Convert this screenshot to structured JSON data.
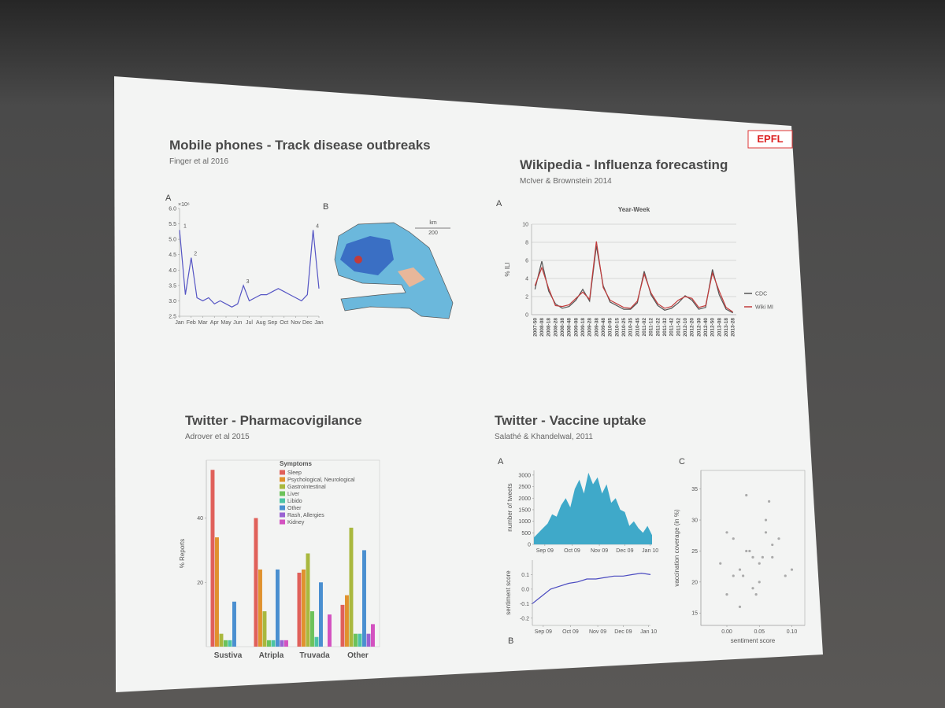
{
  "slide": {
    "logo": "EPFL",
    "panels": [
      {
        "title": "Mobile phones - Track disease outbreaks",
        "citation": "Finger et al 2016",
        "charts": [
          {
            "type": "line",
            "label": "A",
            "multiplier": "×10⁶",
            "color": "#5555c4",
            "xlim": [
              0,
              12
            ],
            "ylim": [
              2.5,
              6.0
            ],
            "yticks": [
              {
                "value": 2.5,
                "label": "2.5"
              },
              {
                "value": 3,
                "label": "3.0"
              },
              {
                "value": 3.5,
                "label": "3.5"
              },
              {
                "value": 4,
                "label": "4.0"
              },
              {
                "value": 4.5,
                "label": "4.5"
              },
              {
                "value": 5,
                "label": "5.0"
              },
              {
                "value": 5.5,
                "label": "5.5"
              },
              {
                "value": 6,
                "label": "6.0"
              }
            ],
            "xticks": [
              {
                "value": 0,
                "label": "Jan"
              },
              {
                "value": 1,
                "label": "Feb"
              },
              {
                "value": 2,
                "label": "Mar"
              },
              {
                "value": 3,
                "label": "Apr"
              },
              {
                "value": 4,
                "label": "May"
              },
              {
                "value": 5,
                "label": "Jun"
              },
              {
                "value": 6,
                "label": "Jul"
              },
              {
                "value": 7,
                "label": "Aug"
              },
              {
                "value": 8,
                "label": "Sep"
              },
              {
                "value": 9,
                "label": "Oct"
              },
              {
                "value": 10,
                "label": "Nov"
              },
              {
                "value": 11,
                "label": "Dec"
              },
              {
                "value": 12,
                "label": "Jan"
              }
            ],
            "x": [
              0,
              0.5,
              1,
              1.5,
              2,
              2.5,
              3,
              3.5,
              4,
              4.5,
              5,
              5.5,
              6,
              6.5,
              7,
              7.5,
              8,
              8.5,
              9,
              9.5,
              10,
              10.5,
              11,
              11.5,
              12
            ],
            "values": [
              5.3,
              3.2,
              4.4,
              3.1,
              3.0,
              3.1,
              2.9,
              3.0,
              2.9,
              2.8,
              2.9,
              3.5,
              3.0,
              3.1,
              3.2,
              3.2,
              3.3,
              3.4,
              3.3,
              3.2,
              3.1,
              3.0,
              3.2,
              5.3,
              3.4
            ],
            "annotations": [
              {
                "text": "1",
                "x": 0.2,
                "y": 5.3
              },
              {
                "text": "2",
                "x": 1.1,
                "y": 4.4
              },
              {
                "text": "3",
                "x": 5.6,
                "y": 3.5
              },
              {
                "text": "4",
                "x": 11.6,
                "y": 5.3
              }
            ]
          },
          {
            "type": "map",
            "label": "B",
            "scale_unit": "km",
            "scale_text": "200"
          }
        ]
      },
      {
        "title": "Wikipedia - Influenza forecasting",
        "citation": "McIver & Brownstein 2014",
        "charts": [
          {
            "type": "line",
            "label": "A",
            "title": "Year-Week",
            "ylabel": "% ILI",
            "grid": true,
            "ylim": [
              0,
              10
            ],
            "yticks": [
              0,
              2,
              4,
              6,
              8,
              10
            ],
            "categories": [
              "2007-50",
              "2008-08",
              "2008-18",
              "2008-28",
              "2008-38",
              "2008-48",
              "2009-08",
              "2009-18",
              "2009-28",
              "2009-38",
              "2009-48",
              "2010-05",
              "2010-15",
              "2010-25",
              "2010-35",
              "2010-45",
              "2011-02",
              "2011-12",
              "2011-22",
              "2011-32",
              "2011-42",
              "2011-52",
              "2012-10",
              "2012-20",
              "2012-30",
              "2012-40",
              "2012-50",
              "2013-08",
              "2013-18",
              "2013-28"
            ],
            "series": [
              {
                "name": "CDC",
                "color": "#555555",
                "values": [
                  2.8,
                  5.9,
                  2.6,
                  1.2,
                  0.7,
                  0.9,
                  1.6,
                  2.8,
                  1.5,
                  7.6,
                  3.2,
                  1.4,
                  1.0,
                  0.6,
                  0.6,
                  1.3,
                  4.8,
                  2.2,
                  1.0,
                  0.5,
                  0.7,
                  1.3,
                  2.1,
                  1.6,
                  0.6,
                  0.8,
                  5.0,
                  2.2,
                  0.6,
                  0.2
                ]
              },
              {
                "name": "Wiki MI",
                "color": "#c23b3b",
                "values": [
                  3.2,
                  5.2,
                  2.9,
                  1.0,
                  0.9,
                  1.1,
                  1.8,
                  2.5,
                  1.7,
                  8.1,
                  3.0,
                  1.6,
                  1.2,
                  0.8,
                  0.7,
                  1.5,
                  4.5,
                  2.4,
                  1.2,
                  0.7,
                  0.9,
                  1.6,
                  2.0,
                  1.8,
                  0.8,
                  1.0,
                  4.6,
                  2.6,
                  0.8,
                  0.3
                ]
              }
            ]
          }
        ]
      },
      {
        "title": "Twitter - Pharmacovigilance",
        "citation": "Adrover et al 2015",
        "charts": [
          {
            "type": "bar",
            "ylabel": "% Reports",
            "legend_title": "Symptoms",
            "ylim": [
              0,
              58
            ],
            "yticks": [
              20,
              40
            ],
            "categories": [
              "Sustiva",
              "Atripla",
              "Truvada",
              "Other"
            ],
            "series": [
              {
                "name": "Sleep",
                "color": "#e0605a",
                "values": [
                  55,
                  40,
                  23,
                  13
                ]
              },
              {
                "name": "Psychological, Neurological",
                "color": "#e0922e",
                "values": [
                  34,
                  24,
                  24,
                  16
                ]
              },
              {
                "name": "Gastrointestinal",
                "color": "#a9b83e",
                "values": [
                  4,
                  11,
                  29,
                  37
                ]
              },
              {
                "name": "Liver",
                "color": "#6cc25a",
                "values": [
                  2,
                  2,
                  11,
                  4
                ]
              },
              {
                "name": "Libido",
                "color": "#4cc4a4",
                "values": [
                  2,
                  2,
                  3,
                  4
                ]
              },
              {
                "name": "Other",
                "color": "#4a8fd0",
                "values": [
                  14,
                  24,
                  20,
                  30
                ]
              },
              {
                "name": "Rash,  Allergies",
                "color": "#9a62d2",
                "values": [
                  0,
                  2,
                  0,
                  4
                ]
              },
              {
                "name": "Kidney",
                "color": "#d352c0",
                "values": [
                  0,
                  2,
                  10,
                  7
                ]
              }
            ]
          }
        ]
      },
      {
        "title": "Twitter - Vaccine uptake",
        "citation": "Salathé & Khandelwal, 2011",
        "charts": [
          {
            "type": "area",
            "label": "A",
            "ylabel": "number of tweets",
            "color": "#3fa9c9",
            "xlim": [
              0,
              130
            ],
            "ylim": [
              0,
              3200
            ],
            "yticks": [
              0,
              500,
              1000,
              1500,
              2000,
              2500,
              3000
            ],
            "xticks": [
              {
                "value": 12,
                "label": "Sep 09"
              },
              {
                "value": 42,
                "label": "Oct 09"
              },
              {
                "value": 72,
                "label": "Nov 09"
              },
              {
                "value": 100,
                "label": "Dec 09"
              },
              {
                "value": 128,
                "label": "Jan 10"
              }
            ],
            "x": [
              0,
              5,
              10,
              15,
              20,
              25,
              30,
              35,
              40,
              45,
              50,
              55,
              60,
              65,
              70,
              75,
              80,
              85,
              90,
              95,
              100,
              105,
              110,
              115,
              120,
              125,
              130
            ],
            "values": [
              300,
              500,
              700,
              900,
              1300,
              1200,
              1700,
              2000,
              1600,
              2400,
              2800,
              2200,
              3100,
              2600,
              2900,
              2200,
              2600,
              1800,
              2000,
              1500,
              1400,
              800,
              1000,
              700,
              500,
              800,
              400
            ]
          },
          {
            "type": "line",
            "label": "B",
            "ylabel": "sentiment score",
            "color": "#4a4ac0",
            "xlim": [
              0,
              130
            ],
            "ylim": [
              -0.25,
              0.2
            ],
            "yticks": [
              -0.2,
              -0.1,
              {
                "value": 0,
                "label": "0.0"
              },
              0.1
            ],
            "xticks": [
              {
                "value": 12,
                "label": "Sep 09"
              },
              {
                "value": 42,
                "label": "Oct 09"
              },
              {
                "value": 72,
                "label": "Nov 09"
              },
              {
                "value": 100,
                "label": "Dec 09"
              },
              {
                "value": 128,
                "label": "Jan 10"
              }
            ],
            "x": [
              0,
              10,
              20,
              30,
              40,
              50,
              60,
              70,
              80,
              90,
              100,
              110,
              120,
              130
            ],
            "values": [
              -0.1,
              -0.05,
              0.0,
              0.02,
              0.04,
              0.05,
              0.07,
              0.07,
              0.08,
              0.09,
              0.09,
              0.1,
              0.11,
              0.1
            ]
          },
          {
            "type": "scatter",
            "label": "C",
            "xlabel": "sentiment score",
            "ylabel": "vaccination coverage (in %)",
            "color": "#aaaaaa",
            "xlim": [
              -0.04,
              0.12
            ],
            "ylim": [
              13,
              38
            ],
            "xticks": [
              {
                "value": 0,
                "label": "0.00"
              },
              {
                "value": 0.05,
                "label": "0.05"
              },
              {
                "value": 0.1,
                "label": "0.10"
              }
            ],
            "yticks": [
              15,
              20,
              25,
              30,
              35
            ],
            "x": [
              0.0,
              0.01,
              0.02,
              0.03,
              0.04,
              0.05,
              0.06,
              0.07,
              0.08,
              0.09,
              0.0,
              0.02,
              0.04,
              0.06,
              -0.01,
              0.03,
              0.05,
              0.07,
              0.1,
              0.01,
              0.035,
              0.055,
              0.045,
              0.025,
              0.065
            ],
            "values": [
              18,
              21,
              22,
              25,
              24,
              23,
              28,
              24,
              27,
              21,
              28,
              16,
              19,
              30,
              23,
              34,
              20,
              26,
              22,
              27,
              25,
              24,
              18,
              21,
              33
            ]
          }
        ]
      }
    ]
  }
}
